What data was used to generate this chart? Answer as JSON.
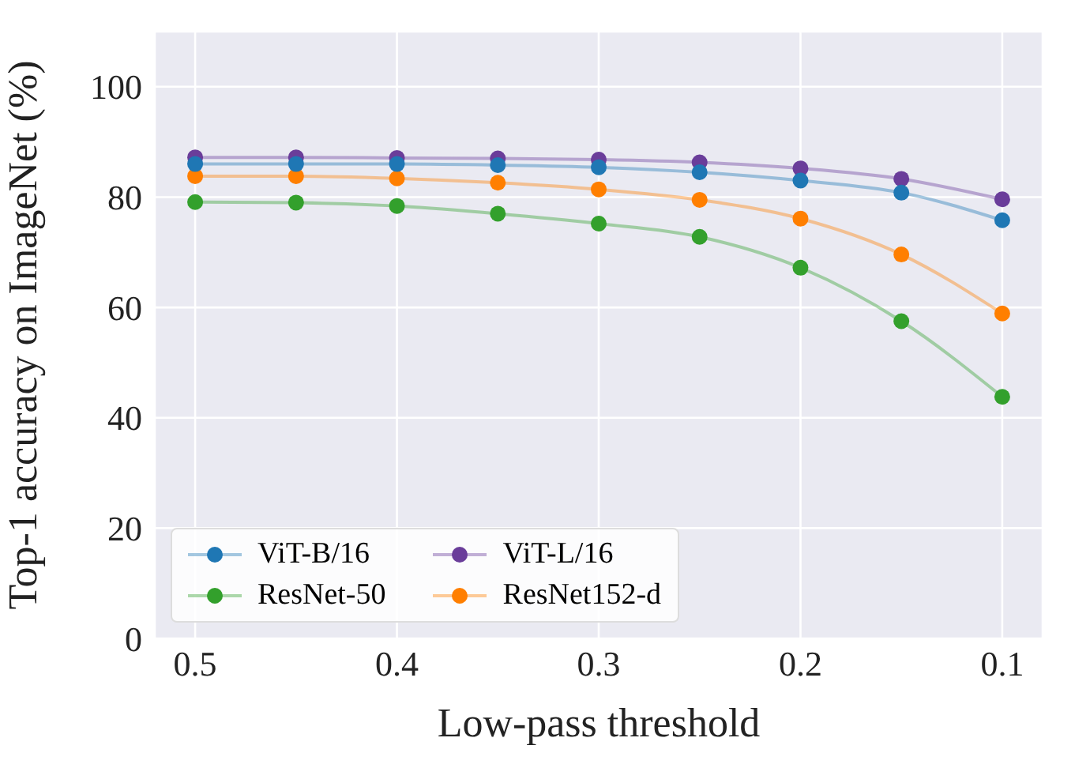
{
  "chart_data": {
    "type": "line",
    "xlabel": "Low-pass threshold",
    "ylabel": "Top-1 accuracy on ImageNet (%)",
    "x": [
      0.5,
      0.45,
      0.4,
      0.35,
      0.3,
      0.25,
      0.2,
      0.15,
      0.1
    ],
    "series": [
      {
        "name": "ViT-B/16",
        "color": "#1f77b4",
        "values": [
          86,
          86,
          86,
          85.8,
          85.4,
          84.5,
          83,
          80.8,
          75.8
        ]
      },
      {
        "name": "ViT-L/16",
        "color": "#6a3d9a",
        "values": [
          87.2,
          87.2,
          87.1,
          87,
          86.8,
          86.3,
          85.2,
          83.3,
          79.6
        ]
      },
      {
        "name": "ResNet-50",
        "color": "#33a02c",
        "values": [
          79.1,
          79,
          78.4,
          77,
          75.2,
          72.8,
          67.2,
          57.5,
          43.8
        ]
      },
      {
        "name": "ResNet152-d",
        "color": "#ff7f00",
        "values": [
          83.8,
          83.8,
          83.4,
          82.6,
          81.4,
          79.5,
          76.1,
          69.6,
          58.9
        ]
      }
    ],
    "xlim": [
      0.52,
      0.08
    ],
    "xticks": [
      0.5,
      0.4,
      0.3,
      0.2,
      0.1
    ],
    "ylim": [
      0,
      110
    ],
    "yticks": [
      0,
      20,
      40,
      60,
      80,
      100
    ],
    "grid": true,
    "legend": "bottom left",
    "marker": "circle",
    "line_style": "solid"
  }
}
